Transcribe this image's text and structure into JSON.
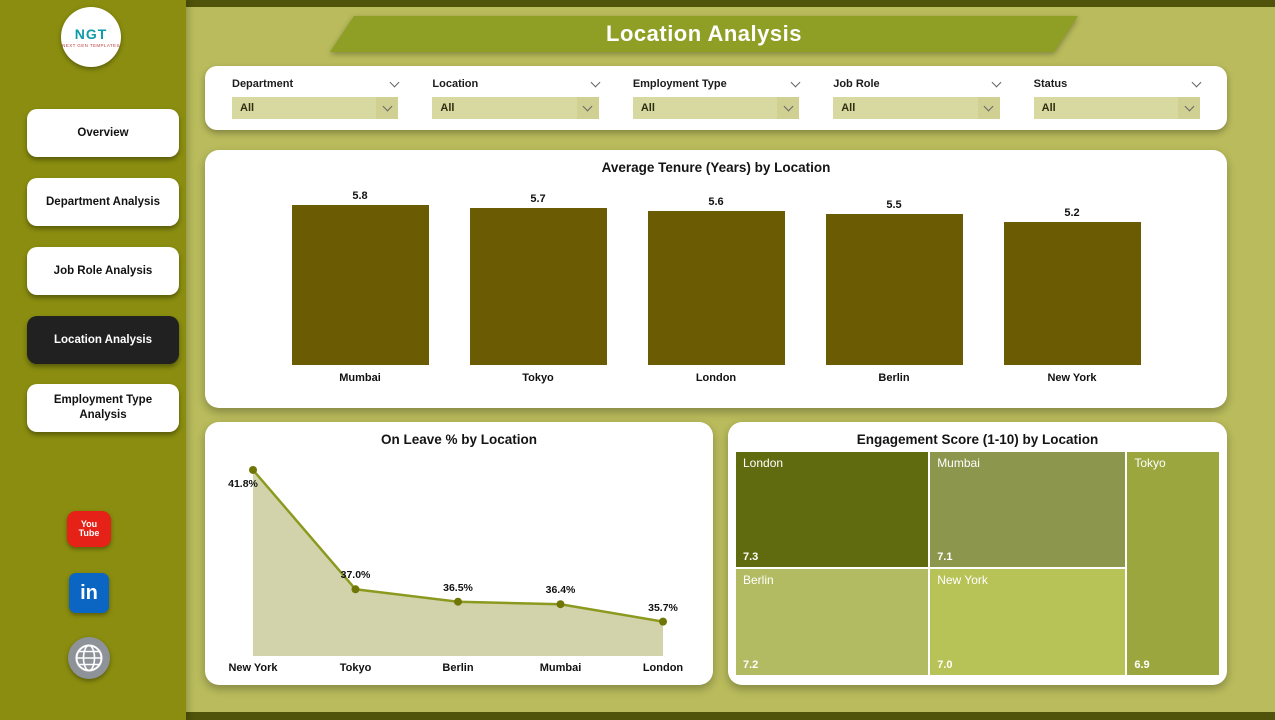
{
  "header": {
    "title": "Location Analysis"
  },
  "sidebar": {
    "logo": {
      "text": "NGT",
      "subtext": "NEXT GEN TEMPLATES"
    },
    "items": [
      {
        "label": "Overview",
        "active": false
      },
      {
        "label": "Department Analysis",
        "active": false
      },
      {
        "label": "Job Role Analysis",
        "active": false
      },
      {
        "label": "Location Analysis",
        "active": true
      },
      {
        "label": "Employment Type Analysis",
        "active": false
      }
    ],
    "social": [
      {
        "name": "youtube",
        "lines": [
          "You",
          "Tube"
        ]
      },
      {
        "name": "linkedin",
        "label": "in"
      },
      {
        "name": "website"
      }
    ]
  },
  "filters": {
    "items": [
      {
        "label": "Department",
        "value": "All"
      },
      {
        "label": "Location",
        "value": "All"
      },
      {
        "label": "Employment Type",
        "value": "All"
      },
      {
        "label": "Job Role",
        "value": "All"
      },
      {
        "label": "Status",
        "value": "All"
      }
    ]
  },
  "chart_data": [
    {
      "type": "bar",
      "title": "Average Tenure (Years) by Location",
      "categories": [
        "Mumbai",
        "Tokyo",
        "London",
        "Berlin",
        "New York"
      ],
      "values": [
        5.8,
        5.7,
        5.6,
        5.5,
        5.2
      ],
      "ylim": [
        0,
        6
      ],
      "bar_color": "#6b5c04"
    },
    {
      "type": "line",
      "title": "On Leave % by Location",
      "categories": [
        "New York",
        "Tokyo",
        "Berlin",
        "Mumbai",
        "London"
      ],
      "values": [
        41.8,
        37.0,
        36.5,
        36.4,
        35.7
      ],
      "labels": [
        "41.8%",
        "37.0%",
        "36.5%",
        "36.4%",
        "35.7%"
      ],
      "ylim": [
        34.8,
        42.2
      ],
      "line_color": "#8b9a1f",
      "area_color": "#d2d3ab",
      "point_color": "#6f7606"
    },
    {
      "type": "treemap",
      "title": "Engagement Score (1-10) by Location",
      "tiles": [
        {
          "label": "London",
          "value": "7.3",
          "color": "#5f6b0e"
        },
        {
          "label": "Mumbai",
          "value": "7.1",
          "color": "#8c964d"
        },
        {
          "label": "Tokyo",
          "value": "6.9",
          "color": "#9ba73e"
        },
        {
          "label": "Berlin",
          "value": "7.2",
          "color": "#b2bb62"
        },
        {
          "label": "New York",
          "value": "7.0",
          "color": "#b7c257"
        }
      ]
    }
  ],
  "colors": {
    "sidebar": "#8a8d0f",
    "background": "#b9bb5c",
    "banner": "#8f9e24",
    "active_nav": "#212121",
    "frame_strip": "#50530a"
  }
}
